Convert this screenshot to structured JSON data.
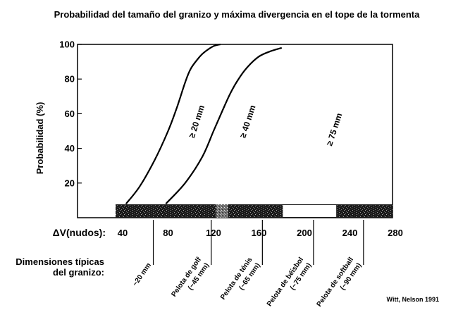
{
  "chart_data": {
    "type": "line",
    "title": "Probabilidad del tamaño del granizo y máxima divergencia en el tope de la tormenta",
    "ylabel": "Probabilidad (%)",
    "xlabel": "ΔV(nudos):",
    "xlim": [
      20,
      290
    ],
    "ylim": [
      0,
      100
    ],
    "x_ticks": [
      40,
      80,
      120,
      160,
      200,
      240,
      280
    ],
    "y_ticks": [
      20,
      40,
      60,
      80,
      100
    ],
    "grid": false,
    "series": [
      {
        "name": "≥ 20 mm",
        "x": [
          43,
          55,
          68,
          80,
          88,
          95,
          100,
          108,
          113,
          120,
          126
        ],
        "y": [
          8,
          18,
          33,
          50,
          64,
          78,
          86,
          93,
          96,
          99,
          100
        ]
      },
      {
        "name": "≥ 40 mm",
        "x": [
          78,
          95,
          110,
          120,
          128,
          135,
          142,
          150,
          160,
          170,
          180
        ],
        "y": [
          8,
          20,
          35,
          50,
          62,
          72,
          80,
          87,
          93,
          96,
          98
        ]
      }
    ],
    "region_labels": [
      {
        "text": "≥ 75 mm",
        "x": 210,
        "y": 48
      }
    ],
    "hail_band": {
      "start": 40,
      "end": 290,
      "light_segments": [
        {
          "from": 122,
          "to": 133,
          "style": "light"
        },
        {
          "from": 181,
          "to": 228,
          "style": "white"
        }
      ]
    },
    "size_markers": [
      {
        "x": 67,
        "lines": [
          "~20 mm"
        ]
      },
      {
        "x": 118,
        "lines": [
          "Pelota de golf",
          "(~45 mm)"
        ]
      },
      {
        "x": 163,
        "lines": [
          "Pelota de ténis",
          "(~65 mm)"
        ]
      },
      {
        "x": 208,
        "lines": [
          "Pelota de béisbol",
          "(~75 mm)"
        ]
      },
      {
        "x": 252,
        "lines": [
          "Pelota de softball",
          "(~90 mm)"
        ]
      }
    ],
    "size_heading": [
      "Dimensiones típicas",
      "del granizo:"
    ],
    "credit": "Witt, Nelson 1991"
  }
}
